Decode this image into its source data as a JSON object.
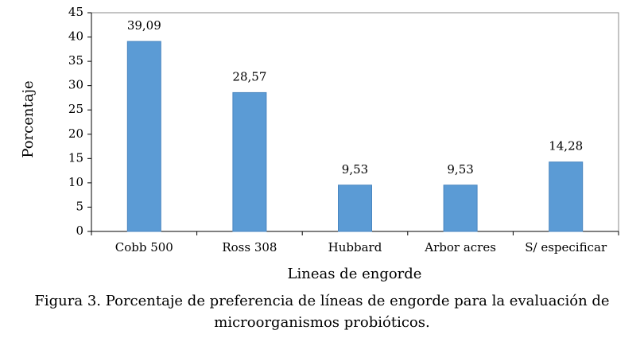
{
  "chart_data": {
    "type": "bar",
    "categories": [
      "Cobb 500",
      "Ross 308",
      "Hubbard",
      "Arbor acres",
      "S/ especificar"
    ],
    "values": [
      39.09,
      28.57,
      9.53,
      9.53,
      14.28
    ],
    "value_labels": [
      "39,09",
      "28,57",
      "9,53",
      "9,53",
      "14,28"
    ],
    "color": "#5b9bd5",
    "ylim": [
      0,
      45
    ],
    "yticks": [
      0,
      5,
      10,
      15,
      20,
      25,
      30,
      35,
      40,
      45
    ],
    "y_label": "Porcentaje",
    "x_label": "Lineas de engorde",
    "grid": false,
    "caption": [
      "Figura 3. Porcentaje de preferencia de líneas de engorde para la evaluación de",
      "microorganismos probióticos."
    ]
  }
}
